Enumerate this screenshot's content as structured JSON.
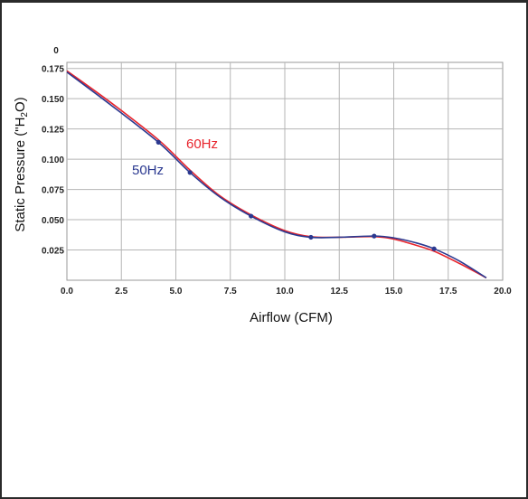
{
  "chart_data": {
    "type": "line",
    "xlabel": "Airflow (CFM)",
    "ylabel_prefix": "Static Pressure (\"H",
    "ylabel_sub": "2",
    "ylabel_suffix": "O)",
    "y_zero_label": "0",
    "xlim": [
      0,
      20
    ],
    "ylim": [
      0,
      0.18
    ],
    "x_ticks": [
      0,
      2.5,
      5,
      7.5,
      10,
      12.5,
      15,
      17.5,
      20
    ],
    "x_tick_labels": [
      "0.0",
      "2.5",
      "5.0",
      "7.5",
      "10.0",
      "12.5",
      "15.0",
      "17.5",
      "20.0"
    ],
    "y_ticks": [
      0.025,
      0.05,
      0.075,
      0.1,
      0.125,
      0.15,
      0.175
    ],
    "y_tick_labels": [
      "0.025",
      "0.050",
      "0.075",
      "0.100",
      "0.125",
      "0.150",
      "0.175"
    ],
    "grid": true,
    "series": [
      {
        "name": "60Hz",
        "color": "#e8242c",
        "x": [
          0.0,
          2.0,
          4.2,
          5.65,
          7.0,
          8.45,
          10.0,
          11.2,
          12.5,
          14.1,
          15.0,
          16.0,
          16.85,
          18.0,
          19.25
        ],
        "y": [
          0.173,
          0.147,
          0.116,
          0.091,
          0.07,
          0.054,
          0.041,
          0.036,
          0.0355,
          0.036,
          0.034,
          0.029,
          0.024,
          0.014,
          0.002
        ],
        "markers": false
      },
      {
        "name": "50Hz",
        "color": "#2b3990",
        "x": [
          0.0,
          2.0,
          4.2,
          5.65,
          7.0,
          8.45,
          10.0,
          11.2,
          12.5,
          14.1,
          15.0,
          16.0,
          16.85,
          18.0,
          19.25
        ],
        "y": [
          0.172,
          0.145,
          0.114,
          0.089,
          0.069,
          0.053,
          0.04,
          0.0355,
          0.0355,
          0.0365,
          0.035,
          0.031,
          0.026,
          0.016,
          0.002
        ],
        "marker_x": [
          4.2,
          5.65,
          8.45,
          11.2,
          14.1,
          16.85
        ],
        "marker_y": [
          0.114,
          0.089,
          0.053,
          0.0355,
          0.0365,
          0.026
        ],
        "markers": true
      }
    ]
  }
}
